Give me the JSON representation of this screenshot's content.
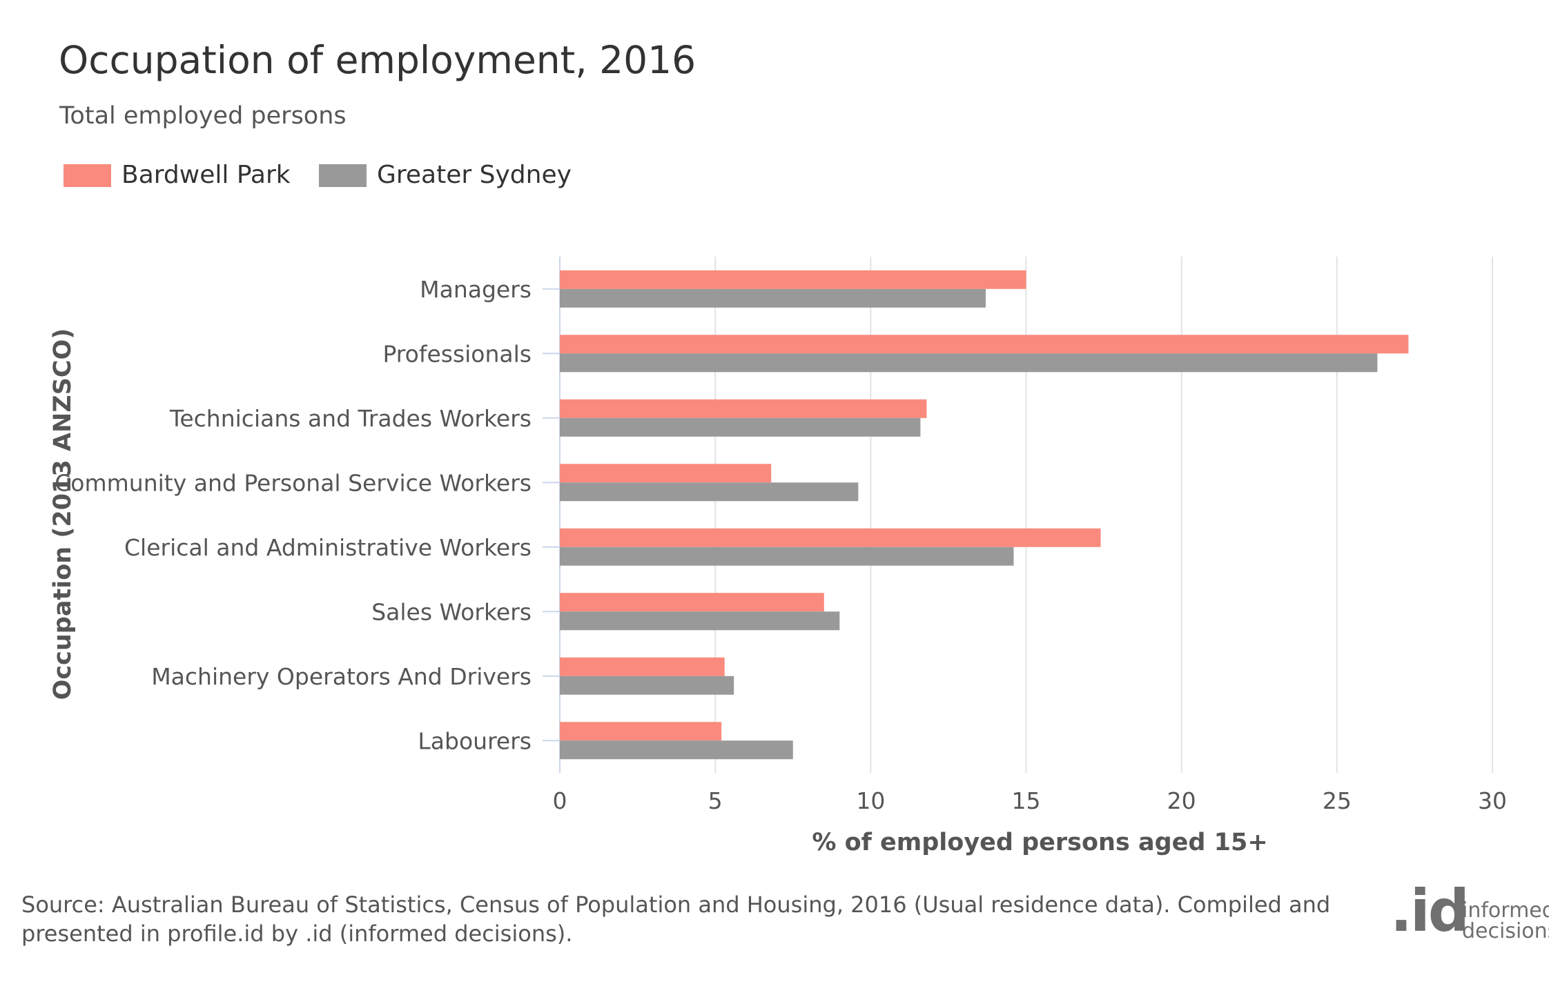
{
  "chart_data": {
    "type": "bar",
    "orientation": "horizontal",
    "title": "Occupation of employment, 2016",
    "subtitle": "Total employed persons",
    "xlabel": "% of employed persons aged 15+",
    "ylabel": "Occupation (2013 ANZSCO)",
    "xlim": [
      0,
      30
    ],
    "xticks": [
      0,
      5,
      10,
      15,
      20,
      25,
      30
    ],
    "grid": true,
    "legend_position": "top-left",
    "categories": [
      "Managers",
      "Professionals",
      "Technicians and Trades Workers",
      "Community and Personal Service Workers",
      "Clerical and Administrative Workers",
      "Sales Workers",
      "Machinery Operators And Drivers",
      "Labourers"
    ],
    "series": [
      {
        "name": "Bardwell Park",
        "color": "#fa8a7d",
        "values": [
          15.0,
          27.3,
          11.8,
          6.8,
          17.4,
          8.5,
          5.3,
          5.2
        ]
      },
      {
        "name": "Greater Sydney",
        "color": "#999999",
        "values": [
          13.7,
          26.3,
          11.6,
          9.6,
          14.6,
          9.0,
          5.6,
          7.5
        ]
      }
    ]
  },
  "footer": {
    "source": "Source: Australian Bureau of Statistics, Census of Population and Housing, 2016 (Usual residence data). Compiled and presented in profile.id by .id (informed decisions).",
    "logo_mark": ".id",
    "logo_line1": "informed",
    "logo_line2": "decisions"
  }
}
